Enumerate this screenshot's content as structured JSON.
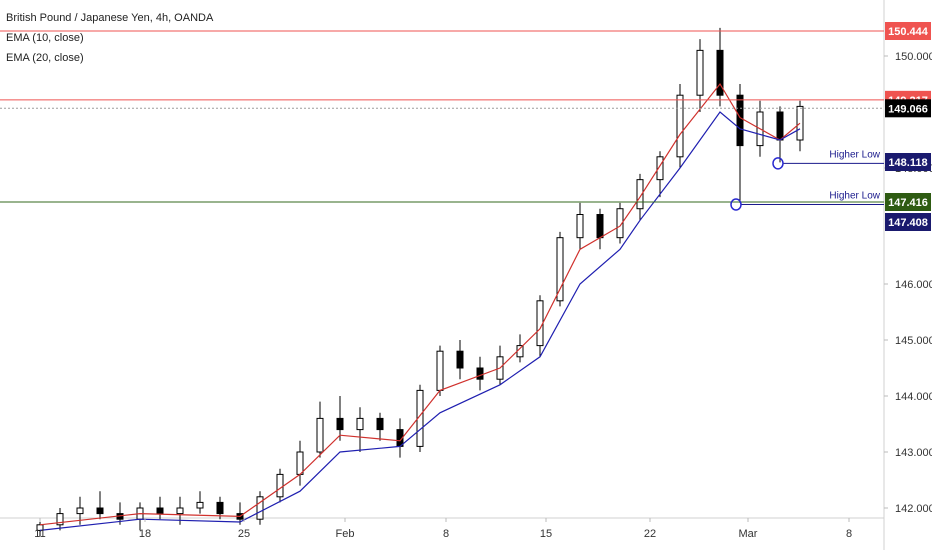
{
  "legend": {
    "title": "British Pound / Japanese Yen, 4h, OANDA",
    "indicators": [
      "EMA (10, close)",
      "EMA (20, close)"
    ]
  },
  "colors": {
    "candle": "#000000",
    "ema10": "#d0312d",
    "ema20": "#1f1fb0",
    "resistance": "#ef5350",
    "support": "#33691e",
    "annotation": "#1a1a8c",
    "grid": "#eeeeee",
    "axis_text": "#333333",
    "price_now_bg": "#000000"
  },
  "chart_data": {
    "type": "candlestick",
    "title": "British Pound / Japanese Yen, 4h, OANDA",
    "interval": "4h",
    "ylim": [
      141.8,
      150.7
    ],
    "x_tick_labels": [
      "11",
      "18",
      "25",
      "Feb",
      "8",
      "15",
      "22",
      "Mar",
      "8"
    ],
    "y_tick_labels": [
      "142.000",
      "143.000",
      "144.000",
      "145.000",
      "146.000",
      "148.000",
      "150.000"
    ],
    "grid": false,
    "price_labels": [
      {
        "value": 150.444,
        "text": "150.444",
        "role": "resistance"
      },
      {
        "value": 149.217,
        "text": "149.217",
        "role": "resistance"
      },
      {
        "value": 149.066,
        "text": "149.066",
        "role": "last-price"
      },
      {
        "value": 148.118,
        "text": "148.118",
        "role": "marker"
      },
      {
        "value": 147.416,
        "text": "147.416",
        "role": "support"
      },
      {
        "value": 147.408,
        "text": "147.408",
        "role": "marker"
      }
    ],
    "horizontal_lines": [
      {
        "value": 150.444,
        "role": "resistance"
      },
      {
        "value": 149.217,
        "role": "resistance"
      },
      {
        "value": 149.066,
        "role": "last-price",
        "style": "dotted"
      },
      {
        "value": 147.416,
        "role": "support"
      }
    ],
    "annotations": [
      {
        "text": "Higher Low",
        "value": 148.118
      },
      {
        "text": "Higher Low",
        "value": 147.408
      }
    ],
    "series": [
      {
        "name": "GBPJPY",
        "type": "ohlc",
        "points": [
          {
            "d": "Jan 11",
            "o": 141.6,
            "h": 141.8,
            "l": 141.5,
            "c": 141.7
          },
          {
            "d": "Jan 12",
            "o": 141.7,
            "h": 142.0,
            "l": 141.6,
            "c": 141.9
          },
          {
            "d": "Jan 13",
            "o": 141.9,
            "h": 142.2,
            "l": 141.7,
            "c": 142.0
          },
          {
            "d": "Jan 14",
            "o": 142.0,
            "h": 142.3,
            "l": 141.8,
            "c": 141.9
          },
          {
            "d": "Jan 15",
            "o": 141.9,
            "h": 142.1,
            "l": 141.7,
            "c": 141.8
          },
          {
            "d": "Jan 18",
            "o": 141.8,
            "h": 142.1,
            "l": 141.6,
            "c": 142.0
          },
          {
            "d": "Jan 19",
            "o": 142.0,
            "h": 142.2,
            "l": 141.8,
            "c": 141.9
          },
          {
            "d": "Jan 20",
            "o": 141.9,
            "h": 142.2,
            "l": 141.7,
            "c": 142.0
          },
          {
            "d": "Jan 21",
            "o": 142.0,
            "h": 142.3,
            "l": 141.9,
            "c": 142.1
          },
          {
            "d": "Jan 22",
            "o": 142.1,
            "h": 142.2,
            "l": 141.8,
            "c": 141.9
          },
          {
            "d": "Jan 25",
            "o": 141.9,
            "h": 142.1,
            "l": 141.7,
            "c": 141.8
          },
          {
            "d": "Jan 26",
            "o": 141.8,
            "h": 142.3,
            "l": 141.7,
            "c": 142.2
          },
          {
            "d": "Jan 27",
            "o": 142.2,
            "h": 142.7,
            "l": 142.1,
            "c": 142.6
          },
          {
            "d": "Jan 28",
            "o": 142.6,
            "h": 143.2,
            "l": 142.4,
            "c": 143.0
          },
          {
            "d": "Jan 29",
            "o": 143.0,
            "h": 143.9,
            "l": 142.9,
            "c": 143.6
          },
          {
            "d": "Feb 1",
            "o": 143.6,
            "h": 144.0,
            "l": 143.2,
            "c": 143.4
          },
          {
            "d": "Feb 2",
            "o": 143.4,
            "h": 143.8,
            "l": 143.0,
            "c": 143.6
          },
          {
            "d": "Feb 3",
            "o": 143.6,
            "h": 143.7,
            "l": 143.2,
            "c": 143.4
          },
          {
            "d": "Feb 4",
            "o": 143.4,
            "h": 143.6,
            "l": 142.9,
            "c": 143.1
          },
          {
            "d": "Feb 5",
            "o": 143.1,
            "h": 144.2,
            "l": 143.0,
            "c": 144.1
          },
          {
            "d": "Feb 8",
            "o": 144.1,
            "h": 144.9,
            "l": 144.0,
            "c": 144.8
          },
          {
            "d": "Feb 9",
            "o": 144.8,
            "h": 145.0,
            "l": 144.3,
            "c": 144.5
          },
          {
            "d": "Feb 10",
            "o": 144.5,
            "h": 144.7,
            "l": 144.1,
            "c": 144.3
          },
          {
            "d": "Feb 11",
            "o": 144.3,
            "h": 144.9,
            "l": 144.2,
            "c": 144.7
          },
          {
            "d": "Feb 12",
            "o": 144.7,
            "h": 145.1,
            "l": 144.6,
            "c": 144.9
          },
          {
            "d": "Feb 15",
            "o": 144.9,
            "h": 145.8,
            "l": 144.7,
            "c": 145.7
          },
          {
            "d": "Feb 16",
            "o": 145.7,
            "h": 146.9,
            "l": 145.6,
            "c": 146.8
          },
          {
            "d": "Feb 17",
            "o": 146.8,
            "h": 147.4,
            "l": 146.6,
            "c": 147.2
          },
          {
            "d": "Feb 18",
            "o": 147.2,
            "h": 147.3,
            "l": 146.6,
            "c": 146.8
          },
          {
            "d": "Feb 19",
            "o": 146.8,
            "h": 147.4,
            "l": 146.7,
            "c": 147.3
          },
          {
            "d": "Feb 22",
            "o": 147.3,
            "h": 147.9,
            "l": 147.1,
            "c": 147.8
          },
          {
            "d": "Feb 23",
            "o": 147.8,
            "h": 148.3,
            "l": 147.5,
            "c": 148.2
          },
          {
            "d": "Feb 24",
            "o": 148.2,
            "h": 149.5,
            "l": 148.0,
            "c": 149.3
          },
          {
            "d": "Feb 25",
            "o": 149.3,
            "h": 150.3,
            "l": 149.0,
            "c": 150.1
          },
          {
            "d": "Feb 26",
            "o": 150.1,
            "h": 150.5,
            "l": 149.1,
            "c": 149.3
          },
          {
            "d": "Mar 1",
            "o": 149.3,
            "h": 149.5,
            "l": 147.4,
            "c": 148.4
          },
          {
            "d": "Mar 2",
            "o": 148.4,
            "h": 149.2,
            "l": 148.2,
            "c": 149.0
          },
          {
            "d": "Mar 3",
            "o": 149.0,
            "h": 149.1,
            "l": 148.1,
            "c": 148.5
          },
          {
            "d": "Mar 4",
            "o": 148.5,
            "h": 149.2,
            "l": 148.3,
            "c": 149.1
          }
        ]
      },
      {
        "name": "EMA (10, close)",
        "type": "line",
        "points": [
          {
            "d": "Jan 11",
            "v": 141.7
          },
          {
            "d": "Jan 18",
            "v": 141.9
          },
          {
            "d": "Jan 25",
            "v": 141.85
          },
          {
            "d": "Jan 28",
            "v": 142.6
          },
          {
            "d": "Feb 1",
            "v": 143.3
          },
          {
            "d": "Feb 4",
            "v": 143.2
          },
          {
            "d": "Feb 8",
            "v": 144.1
          },
          {
            "d": "Feb 11",
            "v": 144.5
          },
          {
            "d": "Feb 15",
            "v": 145.2
          },
          {
            "d": "Feb 17",
            "v": 146.6
          },
          {
            "d": "Feb 19",
            "v": 147.0
          },
          {
            "d": "Feb 22",
            "v": 147.5
          },
          {
            "d": "Feb 24",
            "v": 148.6
          },
          {
            "d": "Feb 26",
            "v": 149.5
          },
          {
            "d": "Mar 1",
            "v": 148.9
          },
          {
            "d": "Mar 3",
            "v": 148.5
          },
          {
            "d": "Mar 4",
            "v": 148.8
          }
        ]
      },
      {
        "name": "EMA (20, close)",
        "type": "line",
        "points": [
          {
            "d": "Jan 11",
            "v": 141.6
          },
          {
            "d": "Jan 18",
            "v": 141.8
          },
          {
            "d": "Jan 25",
            "v": 141.75
          },
          {
            "d": "Jan 28",
            "v": 142.3
          },
          {
            "d": "Feb 1",
            "v": 143.0
          },
          {
            "d": "Feb 4",
            "v": 143.1
          },
          {
            "d": "Feb 8",
            "v": 143.7
          },
          {
            "d": "Feb 11",
            "v": 144.2
          },
          {
            "d": "Feb 15",
            "v": 144.7
          },
          {
            "d": "Feb 17",
            "v": 146.0
          },
          {
            "d": "Feb 19",
            "v": 146.6
          },
          {
            "d": "Feb 22",
            "v": 147.1
          },
          {
            "d": "Feb 24",
            "v": 148.0
          },
          {
            "d": "Feb 26",
            "v": 149.0
          },
          {
            "d": "Mar 1",
            "v": 148.7
          },
          {
            "d": "Mar 3",
            "v": 148.5
          },
          {
            "d": "Mar 4",
            "v": 148.7
          }
        ]
      }
    ]
  }
}
